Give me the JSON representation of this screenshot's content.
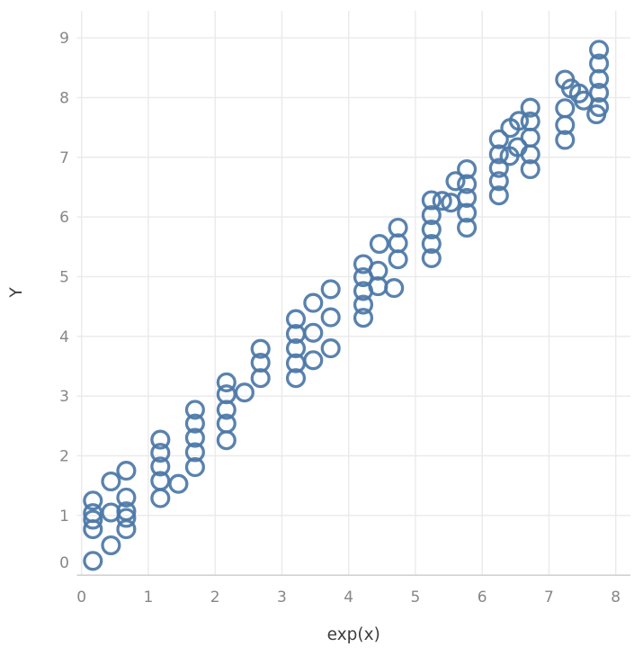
{
  "figure": {
    "background": "#ffffff",
    "marker": {
      "color": "#4c78a8",
      "radius": 9.4,
      "stroke_width": 3.3
    },
    "grid_color": "#eaeaea",
    "axis_line_color": "#d2d2d2",
    "tick_label_color": "#878787",
    "axis_title_color": "#3d3d3d"
  },
  "chart_data": {
    "type": "scatter",
    "title": "",
    "xlabel": "exp(x)",
    "ylabel": "Y",
    "x_ticks": [
      0,
      1,
      2,
      3,
      4,
      5,
      6,
      7,
      8
    ],
    "y_ticks": [
      0,
      1,
      2,
      3,
      4,
      5,
      6,
      7,
      8,
      9
    ],
    "xlim": [
      -0.07,
      8.22
    ],
    "ylim": [
      -0.01,
      9.45
    ],
    "grid": true,
    "legend": false,
    "marker_style": "open-circle",
    "points": [
      [
        0.17,
        0.24
      ],
      [
        0.17,
        0.77
      ],
      [
        0.17,
        0.93
      ],
      [
        0.17,
        1.04
      ],
      [
        0.17,
        1.25
      ],
      [
        0.44,
        0.5
      ],
      [
        0.44,
        1.05
      ],
      [
        0.44,
        1.57
      ],
      [
        0.67,
        0.77
      ],
      [
        0.67,
        0.96
      ],
      [
        0.67,
        1.07
      ],
      [
        0.67,
        1.3
      ],
      [
        0.67,
        1.75
      ],
      [
        1.18,
        1.29
      ],
      [
        1.18,
        1.58
      ],
      [
        1.18,
        1.82
      ],
      [
        1.18,
        2.05
      ],
      [
        1.18,
        2.27
      ],
      [
        1.45,
        1.53
      ],
      [
        1.7,
        1.81
      ],
      [
        1.7,
        2.06
      ],
      [
        1.7,
        2.3
      ],
      [
        1.7,
        2.54
      ],
      [
        1.7,
        2.77
      ],
      [
        2.17,
        2.26
      ],
      [
        2.17,
        2.54
      ],
      [
        2.17,
        2.77
      ],
      [
        2.17,
        3.03
      ],
      [
        2.17,
        3.23
      ],
      [
        2.44,
        3.06
      ],
      [
        2.68,
        3.3
      ],
      [
        2.68,
        3.56
      ],
      [
        2.68,
        3.79
      ],
      [
        3.21,
        3.3
      ],
      [
        3.21,
        3.55
      ],
      [
        3.21,
        3.8
      ],
      [
        3.21,
        4.04
      ],
      [
        3.21,
        4.29
      ],
      [
        3.47,
        3.6
      ],
      [
        3.47,
        4.06
      ],
      [
        3.47,
        4.56
      ],
      [
        3.73,
        3.8
      ],
      [
        3.73,
        4.32
      ],
      [
        3.73,
        4.79
      ],
      [
        4.22,
        4.31
      ],
      [
        4.22,
        4.53
      ],
      [
        4.22,
        4.76
      ],
      [
        4.22,
        4.99
      ],
      [
        4.22,
        5.21
      ],
      [
        4.44,
        4.84
      ],
      [
        4.44,
        5.1
      ],
      [
        4.46,
        5.55
      ],
      [
        4.68,
        4.81
      ],
      [
        4.74,
        5.29
      ],
      [
        4.74,
        5.56
      ],
      [
        4.74,
        5.82
      ],
      [
        5.24,
        5.31
      ],
      [
        5.24,
        5.55
      ],
      [
        5.24,
        5.79
      ],
      [
        5.24,
        6.03
      ],
      [
        5.24,
        6.28
      ],
      [
        5.4,
        6.27
      ],
      [
        5.53,
        6.24
      ],
      [
        5.6,
        6.6
      ],
      [
        5.77,
        5.82
      ],
      [
        5.77,
        6.07
      ],
      [
        5.77,
        6.32
      ],
      [
        5.77,
        6.55
      ],
      [
        5.77,
        6.8
      ],
      [
        6.25,
        6.36
      ],
      [
        6.25,
        6.6
      ],
      [
        6.25,
        6.82
      ],
      [
        6.25,
        7.05
      ],
      [
        6.25,
        7.3
      ],
      [
        6.41,
        7.02
      ],
      [
        6.42,
        7.49
      ],
      [
        6.53,
        7.17
      ],
      [
        6.55,
        7.61
      ],
      [
        6.72,
        6.8
      ],
      [
        6.72,
        7.05
      ],
      [
        6.72,
        7.33
      ],
      [
        6.72,
        7.6
      ],
      [
        6.72,
        7.83
      ],
      [
        7.24,
        7.29
      ],
      [
        7.24,
        7.54
      ],
      [
        7.24,
        7.82
      ],
      [
        7.24,
        8.3
      ],
      [
        7.33,
        8.15
      ],
      [
        7.45,
        8.07
      ],
      [
        7.52,
        7.95
      ],
      [
        7.71,
        7.72
      ],
      [
        7.75,
        7.84
      ],
      [
        7.75,
        8.08
      ],
      [
        7.75,
        8.31
      ],
      [
        7.75,
        8.57
      ],
      [
        7.75,
        8.8
      ]
    ]
  }
}
